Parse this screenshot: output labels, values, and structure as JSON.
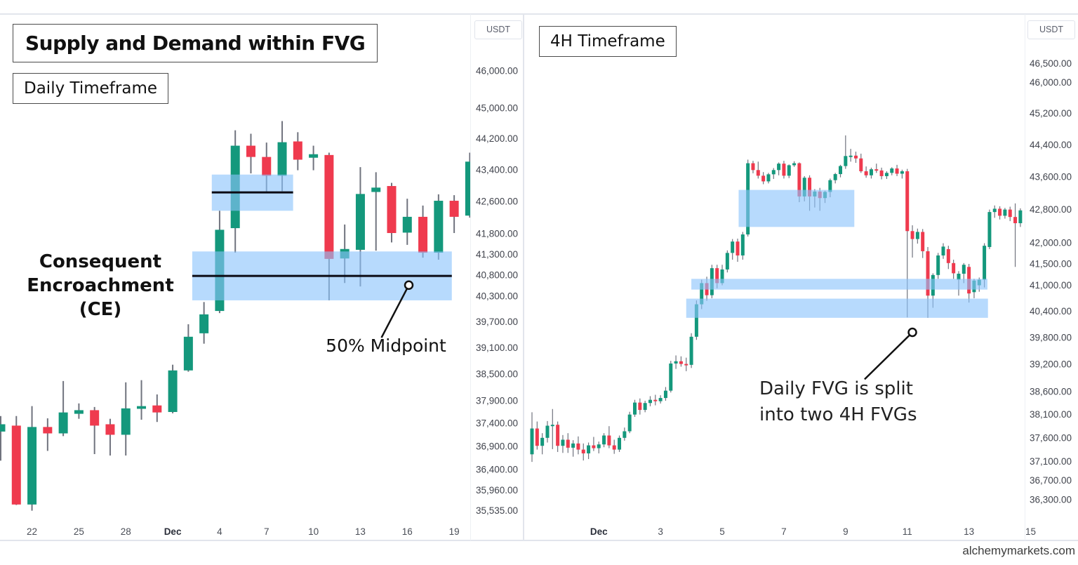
{
  "page": {
    "watermark": "alchemymarkets.com"
  },
  "colors": {
    "up_candle": "#14987c",
    "down_candle": "#ef3a4e",
    "wick": "#70737e",
    "fvg_zone_fill": "rgba(139,196,252,0.62)",
    "ce_line": "#0b0b14",
    "callout": "#111111",
    "axis_text": "#40434c",
    "month_text": "#2a2e39"
  },
  "left_panel": {
    "title": "Supply and Demand within FVG",
    "timeframe_label": "Daily Timeframe",
    "currency_label": "USDT",
    "ce_label_line1": "Consequent",
    "ce_label_line2": "Encroachment (CE)",
    "midpoint_label": "50% Midpoint"
  },
  "right_panel": {
    "timeframe_label": "4H Timeframe",
    "currency_label": "USDT",
    "split_label_line1": "Daily FVG is split",
    "split_label_line2": "into two 4H FVGs"
  },
  "chart_data": [
    {
      "id": "daily",
      "type": "candlestick",
      "title": "Supply and Demand within FVG",
      "timeframe": "Daily",
      "unit": "USDT",
      "y_scale": "log",
      "ylim": [
        35350,
        46300
      ],
      "grid": false,
      "y_ticks": [
        46000,
        45000,
        44200,
        43400,
        42600,
        41800,
        41300,
        40800,
        40300,
        39700,
        39100,
        38500,
        37900,
        37400,
        36900,
        36400,
        35960,
        35535
      ],
      "x_ticks": [
        {
          "i": 2,
          "label": "22",
          "month": false
        },
        {
          "i": 5,
          "label": "25",
          "month": false
        },
        {
          "i": 8,
          "label": "28",
          "month": false
        },
        {
          "i": 11,
          "label": "Dec",
          "month": true
        },
        {
          "i": 14,
          "label": "4",
          "month": false
        },
        {
          "i": 17,
          "label": "7",
          "month": false
        },
        {
          "i": 20,
          "label": "10",
          "month": false
        },
        {
          "i": 23,
          "label": "13",
          "month": false
        },
        {
          "i": 26,
          "label": "16",
          "month": false
        },
        {
          "i": 29,
          "label": "19",
          "month": false
        }
      ],
      "candles": [
        [
          37220,
          37560,
          36590,
          37380
        ],
        [
          37350,
          37560,
          35650,
          35660
        ],
        [
          35660,
          37780,
          35530,
          37320
        ],
        [
          37320,
          37510,
          36800,
          37180
        ],
        [
          37180,
          38340,
          37120,
          37640
        ],
        [
          37610,
          37840,
          37500,
          37690
        ],
        [
          37690,
          37760,
          36730,
          37350
        ],
        [
          37380,
          37500,
          36700,
          37150
        ],
        [
          37150,
          38310,
          36700,
          37730
        ],
        [
          37720,
          38360,
          37480,
          37780
        ],
        [
          37795,
          38040,
          37430,
          37640
        ],
        [
          37650,
          38710,
          37620,
          38580
        ],
        [
          38580,
          39640,
          38550,
          39350
        ],
        [
          39430,
          40160,
          39190,
          39870
        ],
        [
          39950,
          42370,
          39900,
          41900
        ],
        [
          41940,
          44420,
          41340,
          44020
        ],
        [
          44020,
          44330,
          43310,
          43730
        ],
        [
          43730,
          44100,
          42840,
          43250
        ],
        [
          43250,
          44660,
          42860,
          44110
        ],
        [
          44130,
          44370,
          43390,
          43660
        ],
        [
          43710,
          44020,
          43390,
          43800
        ],
        [
          43780,
          43840,
          40200,
          41190
        ],
        [
          41200,
          42030,
          40610,
          41430
        ],
        [
          41410,
          43470,
          40530,
          42790
        ],
        [
          42840,
          43340,
          41390,
          42950
        ],
        [
          42990,
          43070,
          41590,
          41820
        ],
        [
          41830,
          42670,
          41530,
          42220
        ],
        [
          42220,
          42500,
          41220,
          41340
        ],
        [
          41340,
          42780,
          41170,
          42620
        ],
        [
          42620,
          42760,
          41820,
          42220
        ],
        [
          42250,
          43840,
          42200,
          43610
        ]
      ],
      "zones": [
        {
          "name": "supply-fvg",
          "from": 13.5,
          "to": 18.7,
          "top": 43280,
          "bottom": 42370,
          "midline": 42830
        },
        {
          "name": "demand-fvg",
          "from": 12.25,
          "to": 28.85,
          "top": 41370,
          "bottom": 40200,
          "midline": 40780
        }
      ],
      "callout": {
        "circle_i": 26.1,
        "circle_price": 40560,
        "end_i": 24.35,
        "end_price": 39330
      }
    },
    {
      "id": "4h",
      "type": "candlestick",
      "title": "4H Timeframe",
      "timeframe": "4H",
      "unit": "USDT",
      "y_scale": "log",
      "ylim": [
        35900,
        46600
      ],
      "grid": false,
      "y_ticks": [
        46500,
        46000,
        45200,
        44400,
        43600,
        42800,
        42000,
        41500,
        41000,
        40400,
        39800,
        39200,
        38600,
        38100,
        37600,
        37100,
        36700,
        36300
      ],
      "x_ticks": [
        {
          "i": 13,
          "label": "Dec",
          "month": true
        },
        {
          "i": 25,
          "label": "3",
          "month": false
        },
        {
          "i": 37,
          "label": "5",
          "month": false
        },
        {
          "i": 49,
          "label": "7",
          "month": false
        },
        {
          "i": 61,
          "label": "9",
          "month": false
        },
        {
          "i": 73,
          "label": "11",
          "month": false
        },
        {
          "i": 85,
          "label": "13",
          "month": false
        },
        {
          "i": 97,
          "label": "15",
          "month": false
        }
      ],
      "candles": [
        [
          37250,
          38150,
          37090,
          37800
        ],
        [
          37800,
          37950,
          37350,
          37430
        ],
        [
          37430,
          37700,
          37250,
          37600
        ],
        [
          37600,
          37960,
          37500,
          37860
        ],
        [
          37860,
          38220,
          37360,
          37880
        ],
        [
          37880,
          37950,
          37300,
          37430
        ],
        [
          37430,
          37660,
          37280,
          37560
        ],
        [
          37560,
          37700,
          37280,
          37390
        ],
        [
          37390,
          37550,
          37200,
          37480
        ],
        [
          37480,
          37630,
          37250,
          37350
        ],
        [
          37350,
          37480,
          37120,
          37270
        ],
        [
          37270,
          37500,
          37150,
          37440
        ],
        [
          37440,
          37620,
          37320,
          37380
        ],
        [
          37380,
          37520,
          37270,
          37460
        ],
        [
          37460,
          37700,
          37400,
          37650
        ],
        [
          37650,
          37850,
          37380,
          37440
        ],
        [
          37440,
          37560,
          37260,
          37350
        ],
        [
          37350,
          37650,
          37300,
          37600
        ],
        [
          37600,
          37820,
          37540,
          37740
        ],
        [
          37740,
          38160,
          37700,
          38100
        ],
        [
          38100,
          38420,
          38050,
          38360
        ],
        [
          38360,
          38450,
          38100,
          38200
        ],
        [
          38200,
          38400,
          38150,
          38350
        ],
        [
          38350,
          38500,
          38280,
          38420
        ],
        [
          38420,
          38530,
          38300,
          38390
        ],
        [
          38390,
          38520,
          38340,
          38460
        ],
        [
          38460,
          38700,
          38400,
          38620
        ],
        [
          38620,
          39280,
          38580,
          39220
        ],
        [
          39220,
          39400,
          39100,
          39270
        ],
        [
          39270,
          39380,
          39150,
          39210
        ],
        [
          39210,
          39350,
          39050,
          39190
        ],
        [
          39190,
          39900,
          39120,
          39820
        ],
        [
          39820,
          40650,
          39750,
          40560
        ],
        [
          40560,
          41130,
          40450,
          41050
        ],
        [
          41050,
          41200,
          40640,
          40770
        ],
        [
          40770,
          41480,
          40700,
          41400
        ],
        [
          41400,
          41480,
          40930,
          41050
        ],
        [
          41050,
          41480,
          41000,
          41370
        ],
        [
          41370,
          41820,
          41300,
          41760
        ],
        [
          41760,
          42090,
          41600,
          42030
        ],
        [
          42030,
          42100,
          41550,
          41700
        ],
        [
          41700,
          42260,
          41600,
          42200
        ],
        [
          42200,
          44030,
          42150,
          43940
        ],
        [
          43940,
          44000,
          43690,
          43770
        ],
        [
          43770,
          43980,
          43560,
          43630
        ],
        [
          43630,
          43720,
          43420,
          43490
        ],
        [
          43490,
          43700,
          43440,
          43665
        ],
        [
          43665,
          43820,
          43550,
          43770
        ],
        [
          43770,
          43960,
          43640,
          43930
        ],
        [
          43930,
          44000,
          43560,
          43630
        ],
        [
          43630,
          43910,
          43570,
          43890
        ],
        [
          43890,
          43990,
          43850,
          43940
        ],
        [
          43940,
          43960,
          42980,
          43120
        ],
        [
          43120,
          43620,
          43000,
          43580
        ],
        [
          43580,
          43640,
          42770,
          43120
        ],
        [
          43120,
          43300,
          42850,
          43240
        ],
        [
          43240,
          43330,
          42770,
          43080
        ],
        [
          43080,
          43260,
          42960,
          43230
        ],
        [
          43230,
          43560,
          43100,
          43520
        ],
        [
          43520,
          43700,
          43440,
          43670
        ],
        [
          43670,
          43900,
          43590,
          43870
        ],
        [
          43870,
          44640,
          43800,
          44120
        ],
        [
          44120,
          44300,
          43980,
          44130
        ],
        [
          44130,
          44230,
          43950,
          44060
        ],
        [
          44060,
          44180,
          43700,
          43740
        ],
        [
          43740,
          43860,
          43580,
          43640
        ],
        [
          43640,
          43830,
          43560,
          43790
        ],
        [
          43790,
          43930,
          43700,
          43760
        ],
        [
          43760,
          43830,
          43540,
          43620
        ],
        [
          43620,
          43740,
          43550,
          43700
        ],
        [
          43700,
          43840,
          43640,
          43810
        ],
        [
          43810,
          43900,
          43620,
          43680
        ],
        [
          43680,
          43780,
          43560,
          43740
        ],
        [
          43740,
          43800,
          40260,
          42280
        ],
        [
          42280,
          42420,
          41650,
          42090
        ],
        [
          42090,
          42340,
          41980,
          42260
        ],
        [
          42260,
          42330,
          41640,
          41800
        ],
        [
          41800,
          41900,
          40250,
          40760
        ],
        [
          40760,
          41280,
          40480,
          41240
        ],
        [
          41240,
          41760,
          41150,
          41700
        ],
        [
          41700,
          41990,
          41620,
          41910
        ],
        [
          41850,
          41930,
          41380,
          41520
        ],
        [
          41520,
          41600,
          41150,
          41280
        ],
        [
          41130,
          41330,
          40760,
          41270
        ],
        [
          41270,
          41520,
          41050,
          41480
        ],
        [
          41430,
          41500,
          40600,
          40810
        ],
        [
          40840,
          41150,
          40700,
          41110
        ],
        [
          41000,
          41180,
          40850,
          41130
        ],
        [
          41130,
          41990,
          40950,
          41930
        ],
        [
          41900,
          42800,
          41850,
          42740
        ],
        [
          42740,
          42900,
          42600,
          42820
        ],
        [
          42820,
          42880,
          42560,
          42650
        ],
        [
          42650,
          42840,
          42580,
          42800
        ],
        [
          42800,
          42870,
          42520,
          42620
        ],
        [
          42620,
          42950,
          41430,
          42470
        ],
        [
          42470,
          42830,
          42380,
          42780
        ]
      ],
      "zones": [
        {
          "name": "4h-supply-fvg",
          "from": 40.2,
          "to": 62.7,
          "top": 43280,
          "bottom": 42380,
          "midline": null
        },
        {
          "name": "4h-fvg-band-1",
          "from": 31.0,
          "to": 88.6,
          "top": 41150,
          "bottom": 40900,
          "midline": null
        },
        {
          "name": "4h-fvg-band-2",
          "from": 30.0,
          "to": 88.7,
          "top": 40690,
          "bottom": 40250,
          "midline": null
        }
      ],
      "callout": {
        "circle_i": 74.0,
        "circle_price": 39920,
        "end_i": 64.7,
        "end_price": 38870
      }
    }
  ]
}
